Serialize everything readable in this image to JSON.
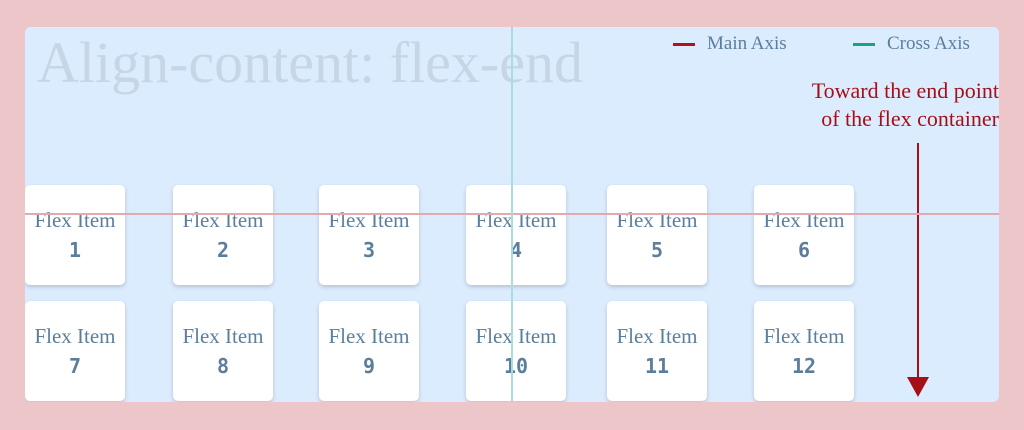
{
  "title": "Align-content: flex-end",
  "legend": {
    "main_axis": {
      "label": "Main Axis",
      "color": "#b3121d"
    },
    "cross_axis": {
      "label": "Cross Axis",
      "color": "#1aa37a"
    }
  },
  "annotation": {
    "line1": "Toward the end point",
    "line2": "of the flex container"
  },
  "items": [
    {
      "label": "Flex Item",
      "number": "1"
    },
    {
      "label": "Flex Item",
      "number": "2"
    },
    {
      "label": "Flex Item",
      "number": "3"
    },
    {
      "label": "Flex Item",
      "number": "4"
    },
    {
      "label": "Flex Item",
      "number": "5"
    },
    {
      "label": "Flex Item",
      "number": "6"
    },
    {
      "label": "Flex Item",
      "number": "7"
    },
    {
      "label": "Flex Item",
      "number": "8"
    },
    {
      "label": "Flex Item",
      "number": "9"
    },
    {
      "label": "Flex Item",
      "number": "10"
    },
    {
      "label": "Flex Item",
      "number": "11"
    },
    {
      "label": "Flex Item",
      "number": "12"
    }
  ]
}
